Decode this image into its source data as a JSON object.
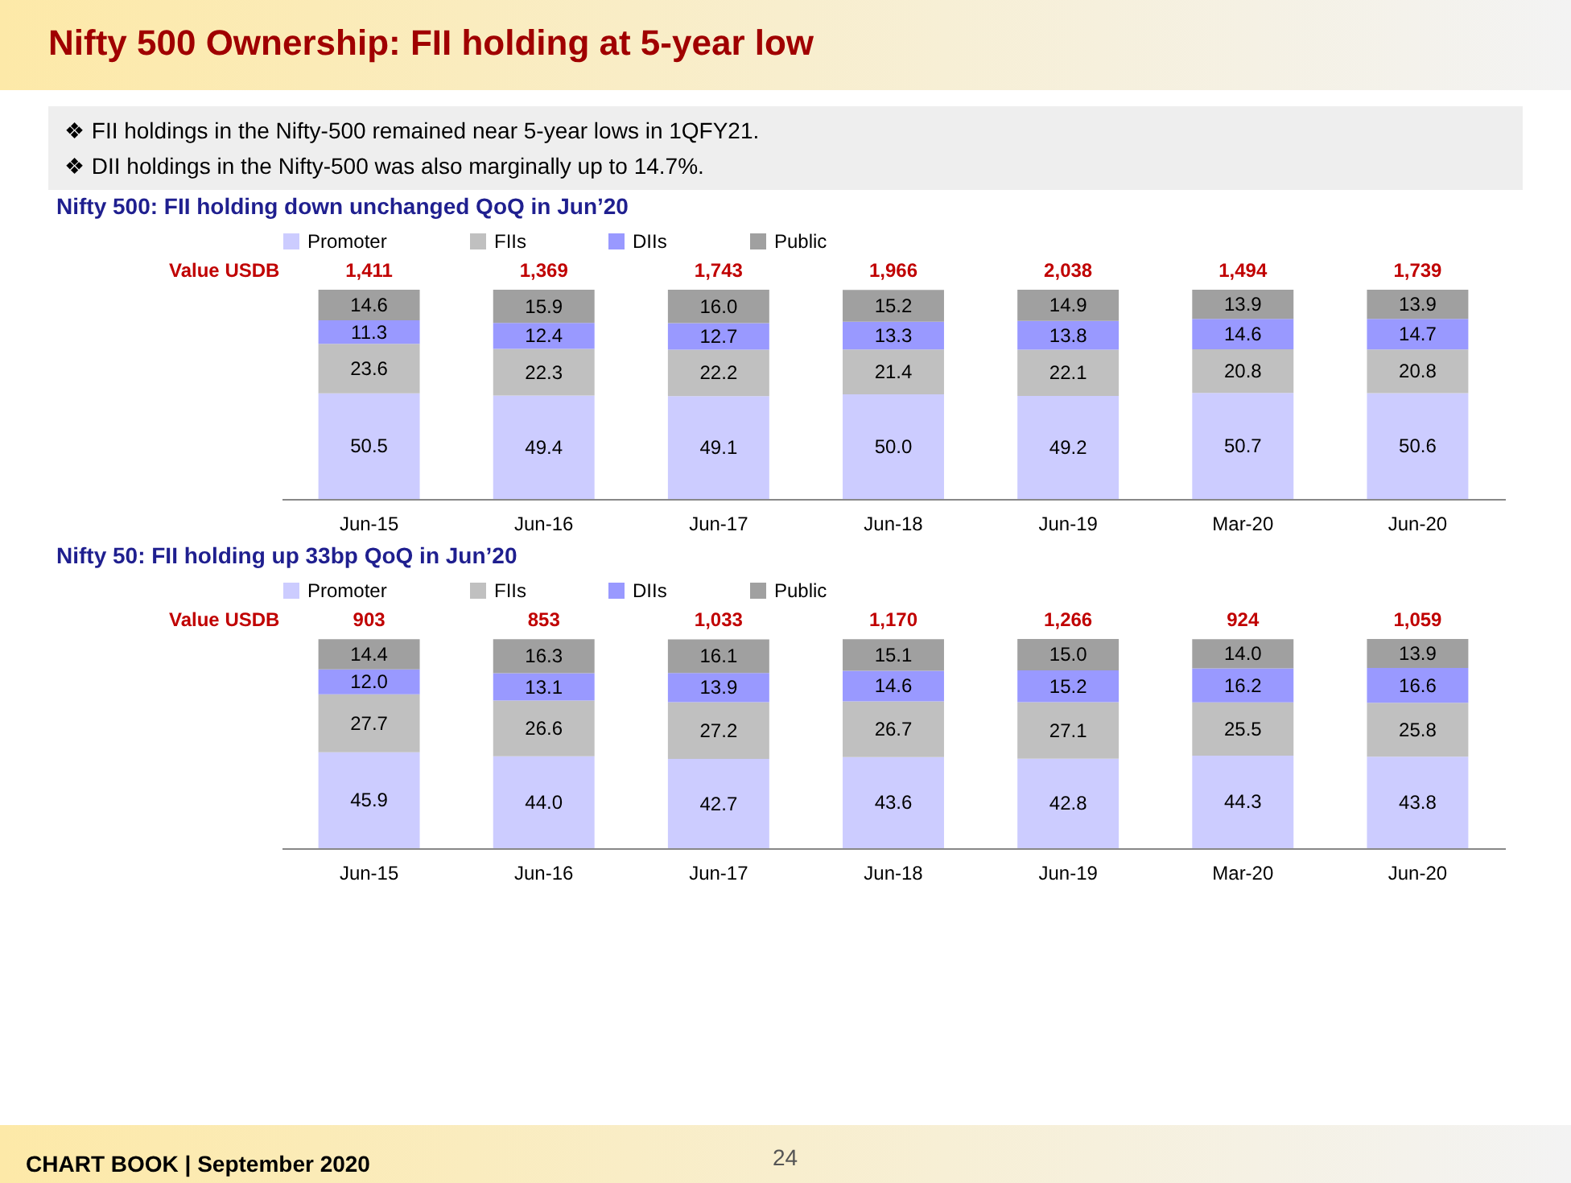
{
  "chart_data": [
    {
      "type": "other",
      "title": "Nifty 500 Ownership: FII holding at 5-year low",
      "annotations": [
        "❖ FII holdings in the Nifty-500 remained near 5-year lows in 1QFY21.",
        "❖ DII holdings in the Nifty-500 was also marginally up to 14.7%.",
        "CHART BOOK | September 2020",
        "24"
      ]
    },
    {
      "type": "bar",
      "title": "Nifty 500: FII holding down unchanged QoQ in Jun’20",
      "stacked": true,
      "legend": "top",
      "categories": [
        "Jun-15",
        "Jun-16",
        "Jun-17",
        "Jun-18",
        "Jun-19",
        "Mar-20",
        "Jun-20"
      ],
      "series": [
        {
          "name": "Promoter",
          "color": "#ccccff",
          "values": [
            50.5,
            49.4,
            49.1,
            50.0,
            49.2,
            50.7,
            50.6
          ],
          "value_labels": [
            "50.5",
            "49.4",
            "49.1",
            "50.0",
            "49.2",
            "50.7",
            "50.6"
          ]
        },
        {
          "name": "FIIs",
          "color": "#c0c0c0",
          "values": [
            23.6,
            22.3,
            22.2,
            21.4,
            22.1,
            20.8,
            20.8
          ],
          "value_labels": [
            "23.6",
            "22.3",
            "22.2",
            "21.4",
            "22.1",
            "20.8",
            "20.8"
          ]
        },
        {
          "name": "DIIs",
          "color": "#9999ff",
          "values": [
            11.3,
            12.4,
            12.7,
            13.3,
            13.8,
            14.6,
            14.7
          ],
          "value_labels": [
            "11.3",
            "12.4",
            "12.7",
            "13.3",
            "13.8",
            "14.6",
            "14.7"
          ]
        },
        {
          "name": "Public",
          "color": "#a0a0a0",
          "values": [
            14.6,
            15.9,
            16.0,
            15.2,
            14.9,
            13.9,
            13.9
          ],
          "value_labels": [
            "14.6",
            "15.9",
            "16.0",
            "15.2",
            "14.9",
            "13.9",
            "13.9"
          ]
        }
      ],
      "annotations": [
        "Value USDB",
        "1,411",
        "1,369",
        "1,743",
        "1,966",
        "2,038",
        "1,494",
        "1,739"
      ]
    },
    {
      "type": "bar",
      "title": "Nifty 50: FII holding up 33bp QoQ in Jun’20",
      "stacked": true,
      "legend": "top",
      "categories": [
        "Jun-15",
        "Jun-16",
        "Jun-17",
        "Jun-18",
        "Jun-19",
        "Mar-20",
        "Jun-20"
      ],
      "series": [
        {
          "name": "Promoter",
          "color": "#ccccff",
          "values": [
            45.9,
            44.0,
            42.7,
            43.6,
            42.8,
            44.3,
            43.8
          ],
          "value_labels": [
            "45.9",
            "44.0",
            "42.7",
            "43.6",
            "42.8",
            "44.3",
            "43.8"
          ]
        },
        {
          "name": "FIIs",
          "color": "#c0c0c0",
          "values": [
            27.7,
            26.6,
            27.2,
            26.7,
            27.1,
            25.5,
            25.8
          ],
          "value_labels": [
            "27.7",
            "26.6",
            "27.2",
            "26.7",
            "27.1",
            "25.5",
            "25.8"
          ]
        },
        {
          "name": "DIIs",
          "color": "#9999ff",
          "values": [
            12.0,
            13.1,
            13.9,
            14.6,
            15.2,
            16.2,
            16.6
          ],
          "value_labels": [
            "12.0",
            "13.1",
            "13.9",
            "14.6",
            "15.2",
            "16.2",
            "16.6"
          ]
        },
        {
          "name": "Public",
          "color": "#a0a0a0",
          "values": [
            14.4,
            16.3,
            16.1,
            15.1,
            15.0,
            14.0,
            13.9
          ],
          "value_labels": [
            "14.4",
            "16.3",
            "16.1",
            "15.1",
            "15.0",
            "14.0",
            "13.9"
          ]
        }
      ],
      "annotations": [
        "Value USDB",
        "903",
        "853",
        "1,033",
        "1,170",
        "1,266",
        "924",
        "1,059"
      ]
    }
  ]
}
